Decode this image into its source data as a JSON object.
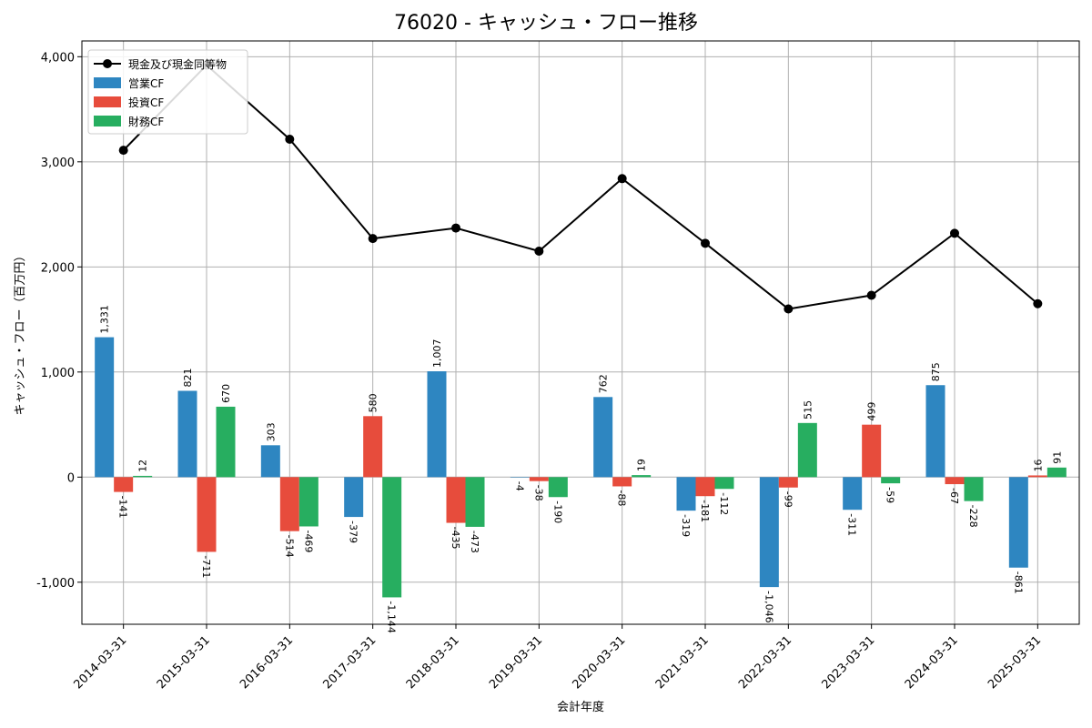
{
  "chart_data": {
    "type": "bar",
    "title": "76020 - キャッシュ・フロー推移",
    "xlabel": "会計年度",
    "ylabel": "キャッシュ・フロー（百万円）",
    "ylim": [
      -1400,
      4150
    ],
    "yticks": [
      -1000,
      0,
      1000,
      2000,
      3000,
      4000
    ],
    "ytick_labels": [
      "-1,000",
      "0",
      "1,000",
      "2,000",
      "3,000",
      "4,000"
    ],
    "grid": true,
    "legend_position": "top-left",
    "categories": [
      "2014-03-31",
      "2015-03-31",
      "2016-03-31",
      "2017-03-31",
      "2018-03-31",
      "2019-03-31",
      "2020-03-31",
      "2021-03-31",
      "2022-03-31",
      "2023-03-31",
      "2024-03-31",
      "2025-03-31"
    ],
    "series": [
      {
        "name": "営業CF",
        "kind": "bar",
        "color": "#2e86c1",
        "values": [
          1331,
          821,
          303,
          -379,
          1007,
          -4,
          762,
          -319,
          -1046,
          -311,
          875,
          -861
        ],
        "labels": [
          "1,331",
          "821",
          "303",
          "-379",
          "1,007",
          "-4",
          "762",
          "-319",
          "-1,046",
          "-311",
          "875",
          "-861"
        ]
      },
      {
        "name": "投資CF",
        "kind": "bar",
        "color": "#e74c3c",
        "values": [
          -141,
          -711,
          -514,
          580,
          -435,
          -38,
          -88,
          -181,
          -99,
          499,
          -67,
          16
        ],
        "labels": [
          "-141",
          "-711",
          "-514",
          "580",
          "-435",
          "-38",
          "-88",
          "-181",
          "-99",
          "499",
          "-67",
          "16"
        ]
      },
      {
        "name": "財務CF",
        "kind": "bar",
        "color": "#27ae60",
        "values": [
          12,
          670,
          -469,
          -1144,
          -473,
          -190,
          19,
          -112,
          515,
          -59,
          -228,
          91
        ],
        "labels": [
          "12",
          "670",
          "-469",
          "-1,144",
          "-473",
          "-190",
          "19",
          "-112",
          "515",
          "-59",
          "-228",
          "91"
        ]
      },
      {
        "name": "現金及び現金同等物",
        "kind": "line",
        "color": "#000000",
        "values": [
          3110,
          3920,
          3215,
          2270,
          2370,
          2150,
          2840,
          2225,
          1600,
          1730,
          2320,
          1650
        ]
      }
    ]
  }
}
